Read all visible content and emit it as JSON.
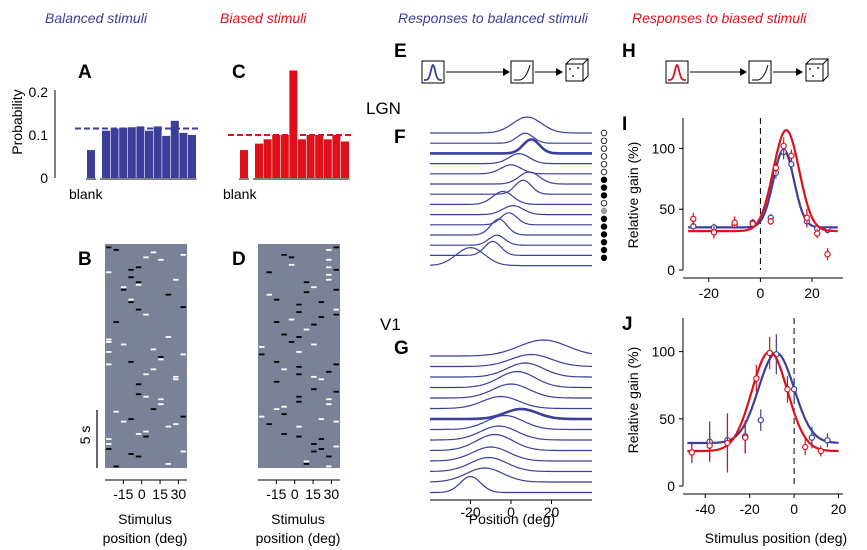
{
  "headings": {
    "balanced": "Balanced stimuli",
    "biased": "Biased stimuli",
    "resp_balanced": "Responses to balanced stimuli",
    "resp_biased": "Responses to biased stimuli"
  },
  "colors": {
    "blue": "#3b3f9a",
    "red": "#e0101a",
    "gray": "#7b8196",
    "black": "#000000"
  },
  "panels": {
    "A": "A",
    "B": "B",
    "C": "C",
    "D": "D",
    "E": "E",
    "F": "F",
    "G": "G",
    "H": "H",
    "I": "I",
    "J": "J"
  },
  "region_labels": {
    "lgn": "LGN",
    "v1": "V1"
  },
  "icons": [
    "gaussian-stimulus-icon",
    "nonlinearity-icon",
    "neuron-cube-icon"
  ],
  "scale_bar_label": "5 s",
  "chart_data": [
    {
      "id": "A",
      "type": "bar",
      "ylabel": "Probability",
      "ylim": [
        0,
        0.25
      ],
      "yticks": [
        "0",
        "0.1",
        "0.2"
      ],
      "blank_label": "blank",
      "blank_value": 0.065,
      "values": [
        0.11,
        0.115,
        0.117,
        0.118,
        0.12,
        0.11,
        0.12,
        0.098,
        0.133,
        0.105,
        0.1
      ],
      "reference_line": 0.115,
      "color": "blue"
    },
    {
      "id": "C",
      "type": "bar",
      "ylim": [
        0,
        0.25
      ],
      "blank_label": "blank",
      "blank_value": 0.065,
      "values": [
        0.08,
        0.09,
        0.1,
        0.1,
        0.25,
        0.09,
        0.1,
        0.1,
        0.09,
        0.1,
        0.085
      ],
      "reference_line": 0.1,
      "color": "red"
    },
    {
      "id": "B",
      "type": "heatmap",
      "xlabel": "Stimulus position (deg)",
      "xticks": [
        "-15",
        "0",
        "15",
        "30"
      ],
      "xtick_values": [
        -15,
        0,
        15,
        30
      ],
      "xlim": [
        -30,
        37
      ]
    },
    {
      "id": "D",
      "type": "heatmap",
      "xlabel": "Stimulus position (deg)",
      "xticks": [
        "-15",
        "0",
        "15",
        "30"
      ],
      "xtick_values": [
        -15,
        0,
        15,
        30
      ],
      "xlim": [
        -30,
        37
      ]
    },
    {
      "id": "F",
      "type": "line",
      "region": "LGN",
      "xlim": [
        -40,
        40
      ],
      "peak_positions": [
        8,
        7,
        10,
        4,
        0,
        9,
        6,
        -4,
        1,
        -1,
        -6,
        -7,
        -9,
        -20
      ],
      "widths": [
        7,
        4,
        4,
        5,
        5,
        5,
        4,
        5,
        5,
        4,
        4,
        4,
        4,
        7
      ],
      "amplitudes": [
        16,
        10,
        14,
        10,
        9,
        12,
        14,
        13,
        9,
        12,
        16,
        10,
        14,
        18
      ],
      "highlight_index": 2,
      "dots": [
        "open",
        "open",
        "open",
        "open",
        "open",
        "open",
        "filled",
        "filled",
        "filled",
        "open",
        "gray",
        "filled",
        "filled",
        "filled",
        "filled",
        "filled",
        "filled"
      ]
    },
    {
      "id": "G",
      "type": "line",
      "region": "V1",
      "xlabel": "Position (deg)",
      "xticks": [
        "-20",
        "0",
        "20"
      ],
      "xtick_values": [
        -20,
        0,
        20
      ],
      "xlim": [
        -40,
        40
      ],
      "peak_positions": [
        16,
        10,
        7,
        3,
        0,
        -5,
        5,
        -3,
        -6,
        -8,
        -10,
        -11,
        -13,
        -20
      ],
      "widths": [
        12,
        10,
        9,
        9,
        9,
        9,
        8,
        9,
        9,
        9,
        9,
        9,
        9,
        5
      ],
      "amplitudes": [
        16,
        12,
        14,
        16,
        14,
        12,
        10,
        14,
        14,
        16,
        14,
        14,
        14,
        16
      ],
      "highlight_index": 6
    },
    {
      "id": "I",
      "type": "line",
      "ylabel": "Relative gain (%)",
      "xlim": [
        -30,
        32
      ],
      "ylim": [
        0,
        125
      ],
      "xticks": [
        "-20",
        "0",
        "20"
      ],
      "xtick_values": [
        -20,
        0,
        20
      ],
      "yticks": [
        "0",
        "50",
        "100"
      ],
      "ytick_values": [
        0,
        50,
        100
      ],
      "dashed_x": 0,
      "series": [
        {
          "color": "blue",
          "baseline": 35,
          "peak": 99,
          "mu": 9,
          "sigma": 4,
          "points": [
            [
              -26,
              36
            ],
            [
              -18,
              35
            ],
            [
              -10,
              37
            ],
            [
              -3,
              39
            ],
            [
              4,
              43
            ],
            [
              6,
              80
            ],
            [
              9,
              97
            ],
            [
              12,
              87
            ],
            [
              18,
              40
            ],
            [
              22,
              34
            ],
            [
              26,
              33
            ]
          ],
          "err": [
            3,
            3,
            3,
            3,
            3,
            5,
            6,
            5,
            5,
            3,
            3
          ]
        },
        {
          "color": "red",
          "baseline": 32,
          "peak": 115,
          "mu": 10,
          "sigma": 5,
          "points": [
            [
              -26,
              42
            ],
            [
              -18,
              31
            ],
            [
              -10,
              39
            ],
            [
              -3,
              38
            ],
            [
              4,
              40
            ],
            [
              6,
              84
            ],
            [
              9,
              102
            ],
            [
              12,
              94
            ],
            [
              18,
              43
            ],
            [
              22,
              30
            ],
            [
              26,
              13
            ]
          ],
          "err": [
            5,
            5,
            5,
            3,
            3,
            5,
            7,
            5,
            7,
            4,
            5
          ]
        }
      ]
    },
    {
      "id": "J",
      "type": "line",
      "ylabel": "Relative gain (%)",
      "xlabel": "Stimulus position (deg)",
      "xlim": [
        -50,
        22
      ],
      "ylim": [
        0,
        125
      ],
      "xticks": [
        "-40",
        "-20",
        "0",
        "20"
      ],
      "xtick_values": [
        -40,
        -20,
        0,
        20
      ],
      "yticks": [
        "0",
        "50",
        "100"
      ],
      "ytick_values": [
        0,
        50,
        100
      ],
      "dashed_x": 0,
      "series": [
        {
          "color": "blue",
          "baseline": 32,
          "peak": 99,
          "mu": -8,
          "sigma": 8,
          "points": [
            [
              -46,
              25
            ],
            [
              -38,
              33
            ],
            [
              -30,
              34
            ],
            [
              -22,
              37
            ],
            [
              -15,
              49
            ],
            [
              -8,
              98
            ],
            [
              0,
              72
            ],
            [
              8,
              36
            ],
            [
              15,
              34
            ]
          ],
          "err": [
            8,
            15,
            20,
            12,
            8,
            15,
            8,
            8,
            5
          ]
        },
        {
          "color": "red",
          "baseline": 26,
          "peak": 100,
          "mu": -11,
          "sigma": 8,
          "points": [
            [
              -46,
              25
            ],
            [
              -38,
              30
            ],
            [
              -30,
              32
            ],
            [
              -22,
              36
            ],
            [
              -17,
              80
            ],
            [
              -11,
              99
            ],
            [
              -3,
              72
            ],
            [
              5,
              29
            ],
            [
              12,
              26
            ]
          ],
          "err": [
            6,
            10,
            22,
            12,
            10,
            12,
            10,
            6,
            4
          ]
        }
      ]
    }
  ]
}
